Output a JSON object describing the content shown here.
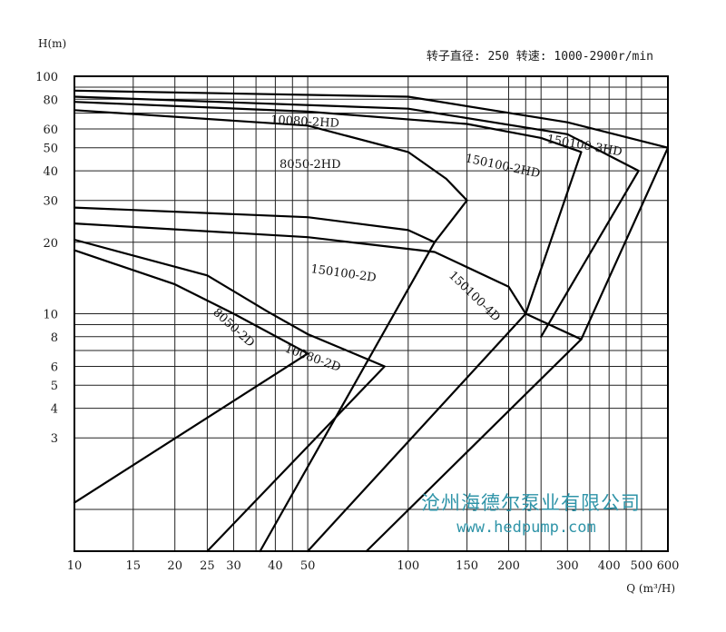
{
  "chart_data": {
    "type": "line",
    "x_scale": "log",
    "y_scale": "log",
    "xlim": [
      10,
      600
    ],
    "ylim": [
      1,
      100
    ],
    "xlabel": "Q (m³/H)",
    "ylabel": "H(m)",
    "info_text": "转子直径: 250  转速: 1000-2900r/min",
    "grid": true,
    "x_ticks": [
      10,
      15,
      20,
      25,
      30,
      40,
      50,
      100,
      150,
      200,
      300,
      400,
      500,
      600
    ],
    "y_ticks": [
      3,
      4,
      5,
      6,
      8,
      10,
      20,
      30,
      40,
      50,
      60,
      80,
      100
    ],
    "x_grid": [
      10,
      15,
      20,
      25,
      30,
      35,
      40,
      45,
      50,
      100,
      150,
      200,
      225,
      250,
      300,
      350,
      400,
      450,
      500,
      600
    ],
    "y_grid": [
      1.5,
      3,
      4,
      5,
      6,
      7,
      8,
      9,
      10,
      20,
      30,
      40,
      50,
      60,
      70,
      80,
      90,
      100
    ],
    "series": [
      {
        "name": "8050-2D",
        "points": [
          [
            10,
            18.5
          ],
          [
            20,
            13.3
          ],
          [
            30,
            10
          ],
          [
            50,
            6.8
          ],
          [
            10,
            1.6
          ]
        ]
      },
      {
        "name": "10080-2D",
        "points": [
          [
            10,
            20.5
          ],
          [
            25,
            14.5
          ],
          [
            38,
            10.2
          ],
          [
            50,
            8.2
          ],
          [
            85,
            6.0
          ],
          [
            25,
            1.0
          ]
        ]
      },
      {
        "name": "150100-2D",
        "points": [
          [
            10,
            28.0
          ],
          [
            50,
            25.5
          ],
          [
            100,
            22.5
          ],
          [
            120,
            20.0
          ],
          [
            36,
            1.0
          ]
        ]
      },
      {
        "name": "150100-4D",
        "points": [
          [
            10,
            24.0
          ],
          [
            50,
            21.0
          ],
          [
            120,
            18.2
          ],
          [
            200,
            13.0
          ],
          [
            225,
            10.0
          ],
          [
            50,
            1.0
          ]
        ]
      },
      {
        "name": "",
        "points": [
          [
            225,
            10.0
          ],
          [
            330,
            7.8
          ],
          [
            75,
            1.0
          ]
        ]
      },
      {
        "name": "8050-2HD",
        "points": [
          [
            10,
            72.0
          ],
          [
            50,
            62.0
          ],
          [
            100,
            48.0
          ],
          [
            130,
            37.0
          ],
          [
            150,
            30.0
          ],
          [
            120,
            20.0
          ]
        ]
      },
      {
        "name": "10080-2HD",
        "points": [
          [
            10,
            78.0
          ],
          [
            50,
            71.0
          ],
          [
            150,
            63.0
          ],
          [
            250,
            55.0
          ],
          [
            330,
            48.0
          ],
          [
            225,
            10.0
          ]
        ]
      },
      {
        "name": "150100-2HD",
        "points": [
          [
            10,
            82.0
          ],
          [
            100,
            73.0
          ],
          [
            300,
            57.0
          ],
          [
            490,
            40.0
          ],
          [
            250,
            8.0
          ]
        ]
      },
      {
        "name": "150100-3HD",
        "points": [
          [
            10,
            87.0
          ],
          [
            100,
            82.0
          ],
          [
            300,
            64.0
          ],
          [
            600,
            50.0
          ],
          [
            330,
            7.8
          ]
        ]
      }
    ],
    "curve_labels": [
      {
        "text": "10080-2HD",
        "series": "10080-2HD"
      },
      {
        "text": "8050-2HD",
        "series": "8050-2HD"
      },
      {
        "text": "150100-3HD",
        "series": "150100-3HD"
      },
      {
        "text": "150100-2HD",
        "series": "150100-2HD"
      },
      {
        "text": "150100-2D",
        "series": "150100-2D"
      },
      {
        "text": "150100-4D",
        "series": "150100-4D"
      },
      {
        "text": "8050-2D",
        "series": "8050-2D"
      },
      {
        "text": "10080-2D",
        "series": "10080-2D"
      }
    ]
  },
  "watermark": {
    "company": "沧州海德尔泵业有限公司",
    "url": "www.hedpump.com"
  }
}
